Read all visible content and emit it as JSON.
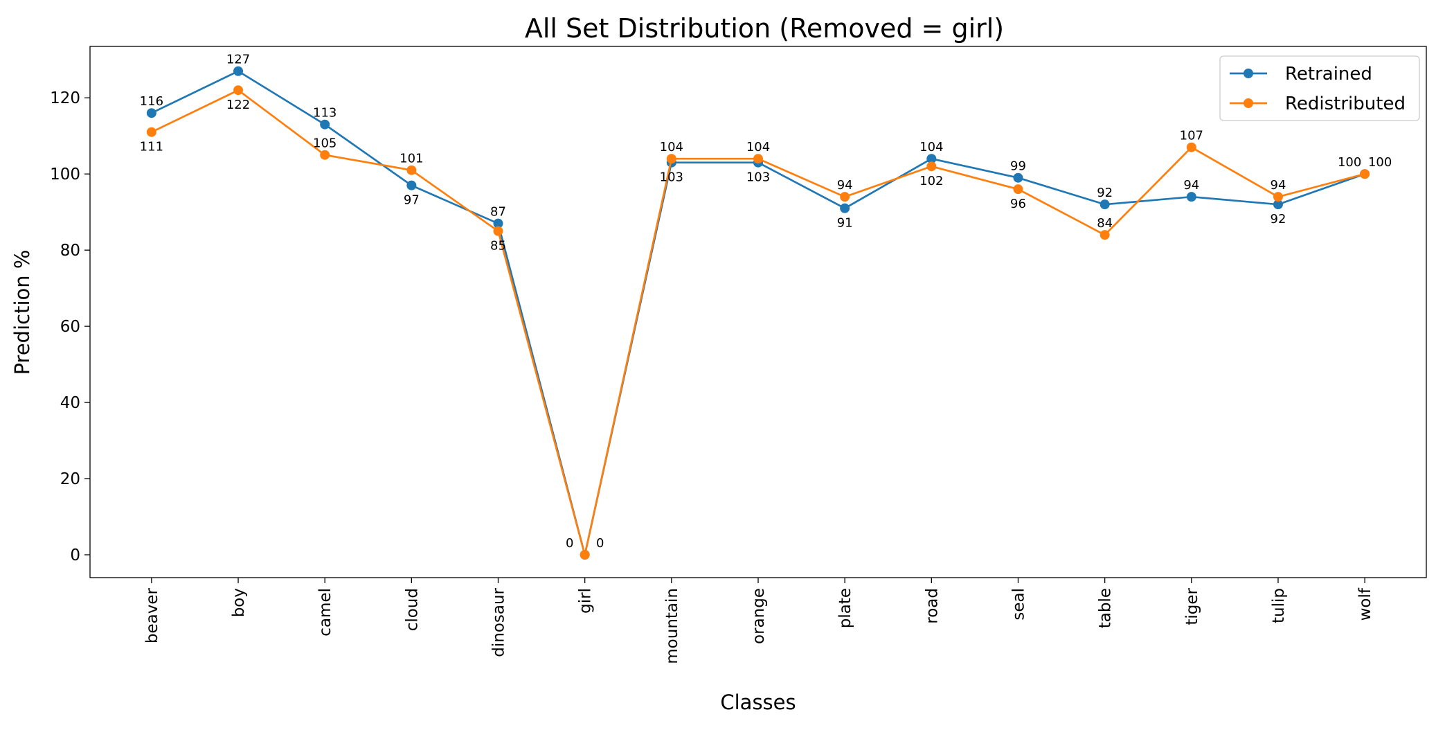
{
  "chart_data": {
    "type": "line",
    "title": "All Set Distribution (Removed = girl)",
    "xlabel": "Classes",
    "ylabel": "Prediction %",
    "categories": [
      "beaver",
      "boy",
      "camel",
      "cloud",
      "dinosaur",
      "girl",
      "mountain",
      "orange",
      "plate",
      "road",
      "seal",
      "table",
      "tiger",
      "tulip",
      "wolf"
    ],
    "series": [
      {
        "name": "Retrained",
        "color": "#1f77b4",
        "values": [
          116,
          127,
          113,
          97,
          87,
          0,
          103,
          103,
          91,
          104,
          99,
          92,
          94,
          92,
          100
        ]
      },
      {
        "name": "Redistributed",
        "color": "#ff7f0e",
        "values": [
          111,
          122,
          105,
          101,
          85,
          0,
          104,
          104,
          94,
          102,
          96,
          84,
          107,
          94,
          100
        ]
      }
    ],
    "ylim": [
      -6,
      133.5
    ],
    "yticks": [
      0,
      20,
      40,
      60,
      80,
      100,
      120
    ],
    "grid": false,
    "legend": "top-right",
    "data_labels": true
  }
}
